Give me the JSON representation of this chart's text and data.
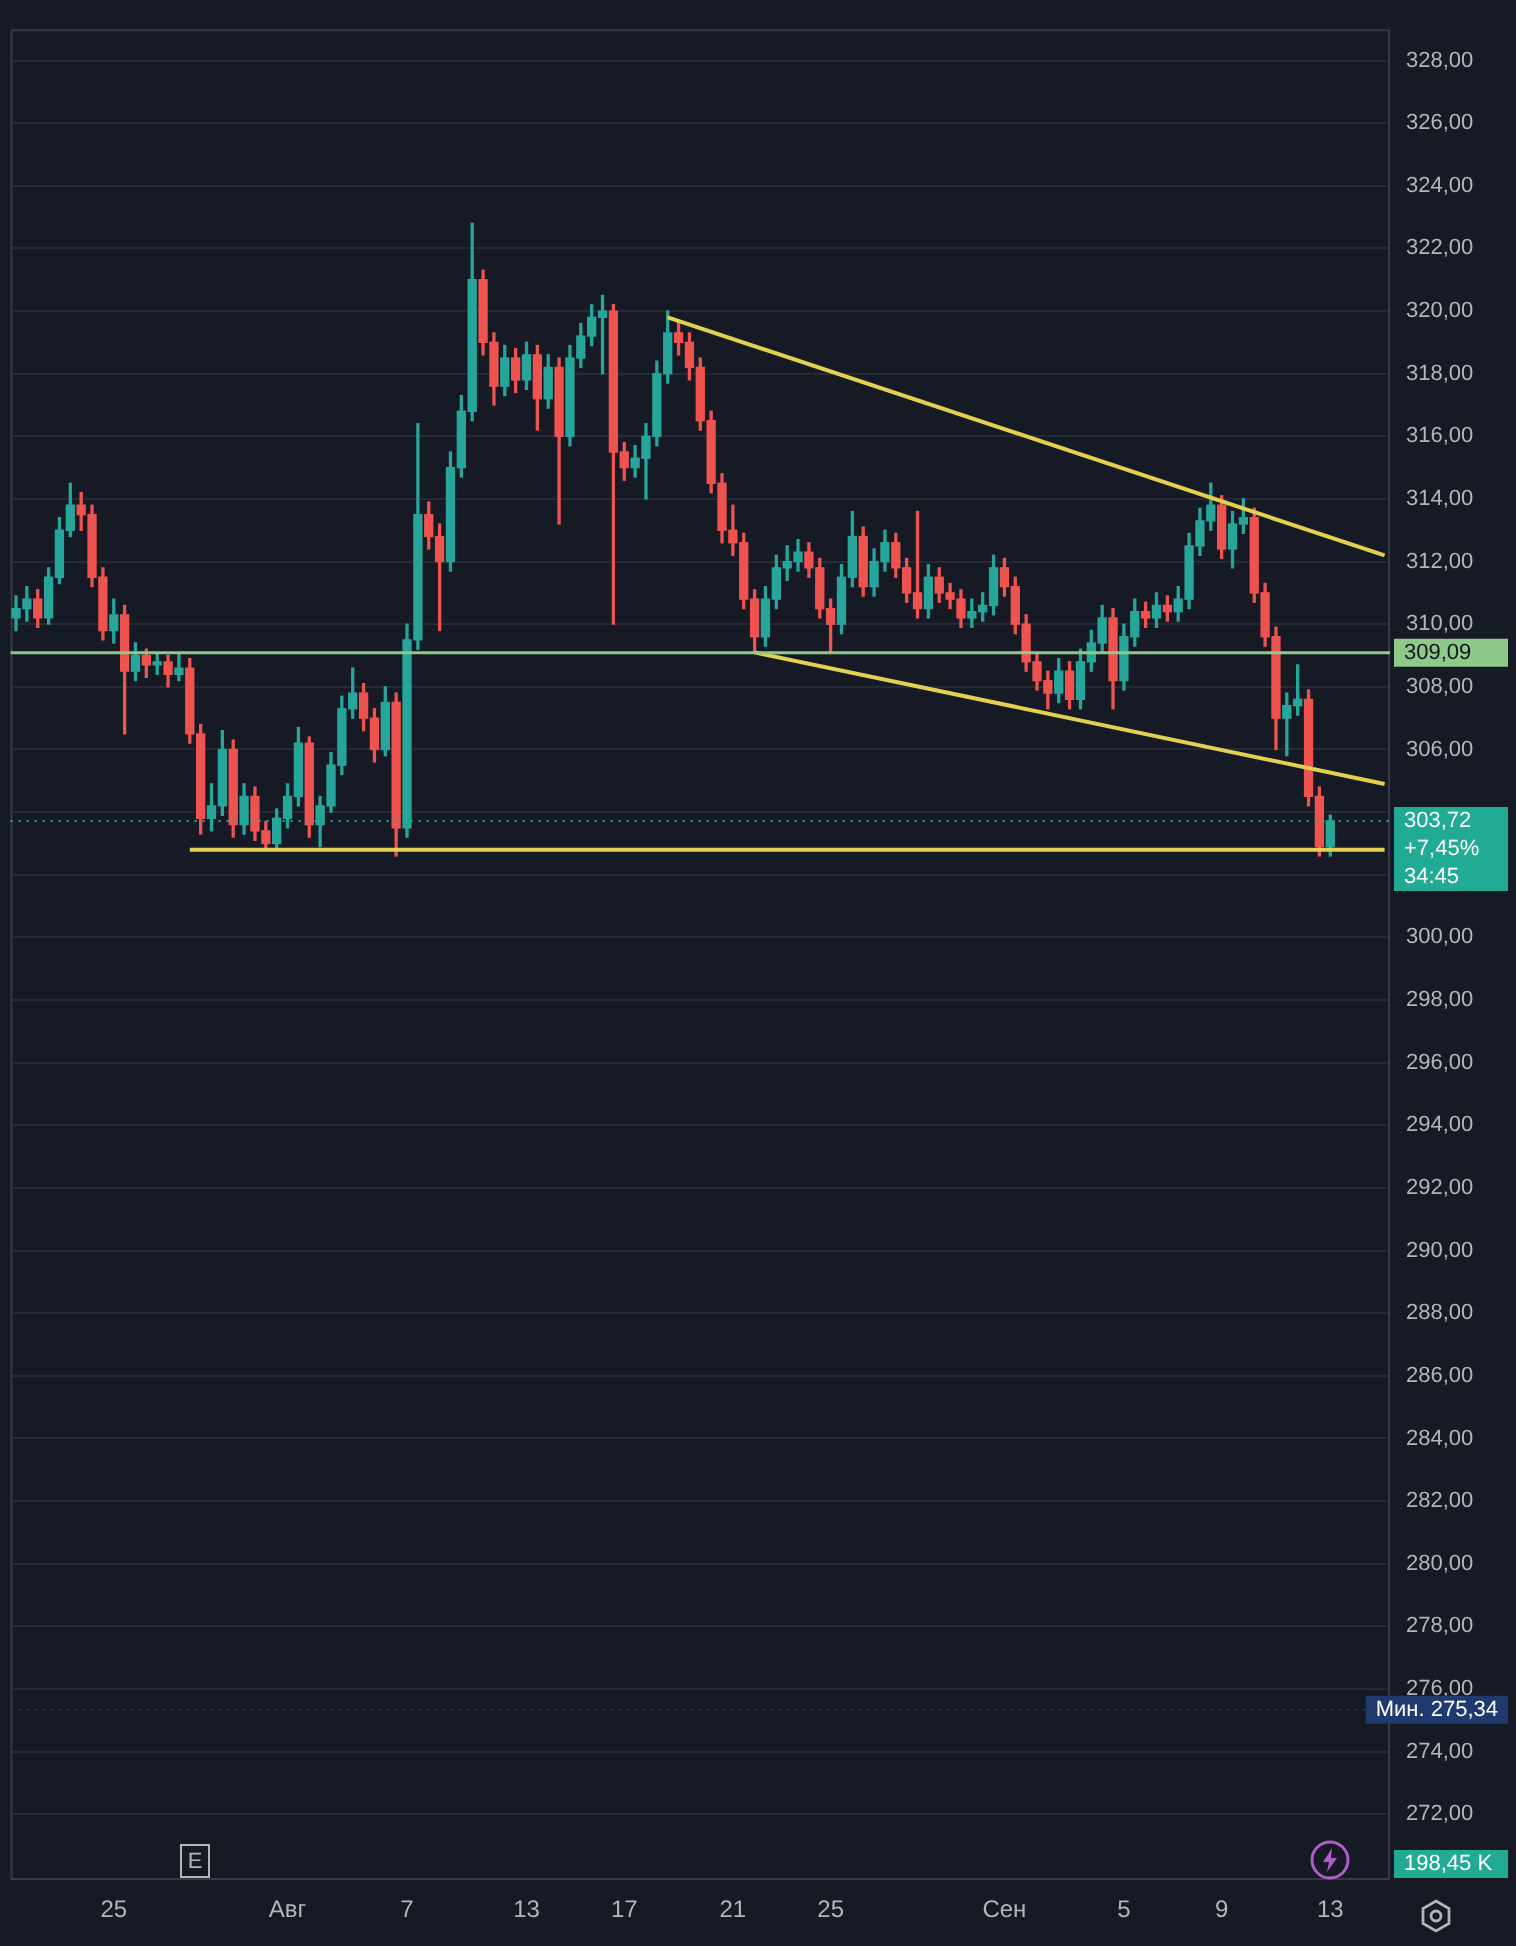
{
  "chart_data": {
    "type": "candlestick",
    "categories": [
      null,
      null,
      null,
      null,
      null,
      null,
      null,
      null,
      null,
      "25",
      null,
      null,
      null,
      null,
      null,
      null,
      null,
      null,
      null,
      null,
      null,
      null,
      null,
      null,
      null,
      "Авг",
      null,
      null,
      null,
      null,
      null,
      null,
      null,
      null,
      null,
      null,
      "7",
      null,
      null,
      null,
      null,
      null,
      null,
      null,
      null,
      null,
      null,
      "13",
      null,
      null,
      null,
      null,
      null,
      null,
      null,
      null,
      "17",
      null,
      null,
      null,
      null,
      null,
      null,
      null,
      null,
      null,
      "21",
      null,
      null,
      null,
      null,
      null,
      null,
      null,
      null,
      "25",
      null,
      null,
      null,
      null,
      null,
      null,
      null,
      null,
      null,
      null,
      null,
      null,
      null,
      null,
      null,
      "Сен",
      null,
      null,
      null,
      null,
      null,
      null,
      null,
      null,
      null,
      null,
      "5",
      null,
      null,
      null,
      null,
      null,
      null,
      null,
      null,
      "9",
      null,
      null,
      null,
      null,
      null,
      null,
      null,
      null,
      null,
      "13",
      null,
      null,
      null,
      null,
      null
    ],
    "ohlc": [
      [
        310.2,
        310.9,
        309.8,
        310.5
      ],
      [
        310.5,
        311.2,
        310.1,
        310.8
      ],
      [
        310.8,
        311.1,
        309.9,
        310.2
      ],
      [
        310.2,
        311.8,
        310.0,
        311.5
      ],
      [
        311.5,
        313.4,
        311.3,
        313.0
      ],
      [
        313.0,
        314.5,
        312.8,
        313.8
      ],
      [
        313.8,
        314.2,
        313.0,
        313.5
      ],
      [
        313.5,
        313.8,
        311.2,
        311.5
      ],
      [
        311.5,
        311.8,
        309.5,
        309.8
      ],
      [
        309.8,
        310.8,
        309.4,
        310.3
      ],
      [
        310.3,
        310.6,
        306.5,
        308.5
      ],
      [
        308.5,
        309.4,
        308.2,
        309.0
      ],
      [
        309.0,
        309.2,
        308.3,
        308.7
      ],
      [
        308.7,
        309.1,
        308.4,
        308.8
      ],
      [
        308.8,
        309.0,
        308.0,
        308.4
      ],
      [
        308.4,
        309.1,
        308.2,
        308.6
      ],
      [
        308.6,
        308.9,
        306.2,
        306.5
      ],
      [
        306.5,
        306.8,
        303.3,
        303.8
      ],
      [
        303.8,
        304.9,
        303.4,
        304.2
      ],
      [
        304.2,
        306.6,
        303.9,
        306.0
      ],
      [
        306.0,
        306.3,
        303.2,
        303.6
      ],
      [
        303.6,
        304.9,
        303.3,
        304.5
      ],
      [
        304.5,
        304.8,
        303.1,
        303.4
      ],
      [
        303.4,
        303.7,
        302.8,
        303.0
      ],
      [
        303.0,
        304.1,
        302.8,
        303.8
      ],
      [
        303.8,
        304.9,
        303.5,
        304.5
      ],
      [
        304.5,
        306.7,
        304.2,
        306.2
      ],
      [
        306.2,
        306.4,
        303.2,
        303.6
      ],
      [
        303.6,
        304.5,
        302.9,
        304.2
      ],
      [
        304.2,
        305.9,
        304.0,
        305.5
      ],
      [
        305.5,
        307.7,
        305.2,
        307.3
      ],
      [
        307.3,
        308.6,
        307.0,
        307.8
      ],
      [
        307.8,
        308.1,
        306.6,
        307.0
      ],
      [
        307.0,
        307.3,
        305.6,
        306.0
      ],
      [
        306.0,
        308.0,
        305.8,
        307.5
      ],
      [
        307.5,
        307.8,
        302.6,
        303.5
      ],
      [
        303.5,
        310.0,
        303.2,
        309.5
      ],
      [
        309.5,
        316.4,
        309.2,
        313.5
      ],
      [
        313.5,
        313.9,
        312.4,
        312.8
      ],
      [
        312.8,
        313.2,
        309.8,
        312.0
      ],
      [
        312.0,
        315.5,
        311.7,
        315.0
      ],
      [
        315.0,
        317.3,
        314.7,
        316.8
      ],
      [
        316.8,
        322.8,
        316.5,
        321.0
      ],
      [
        321.0,
        321.3,
        318.6,
        319.0
      ],
      [
        319.0,
        319.3,
        317.0,
        317.6
      ],
      [
        317.6,
        318.9,
        317.3,
        318.5
      ],
      [
        318.5,
        318.8,
        317.4,
        317.8
      ],
      [
        317.8,
        319.0,
        317.5,
        318.6
      ],
      [
        318.6,
        318.9,
        316.2,
        317.2
      ],
      [
        317.2,
        318.6,
        316.9,
        318.2
      ],
      [
        318.2,
        318.5,
        313.2,
        316.0
      ],
      [
        316.0,
        318.9,
        315.7,
        318.5
      ],
      [
        318.5,
        319.6,
        318.2,
        319.2
      ],
      [
        319.2,
        320.2,
        318.9,
        319.8
      ],
      [
        319.8,
        320.5,
        318.0,
        320.0
      ],
      [
        320.0,
        320.2,
        310.0,
        315.5
      ],
      [
        315.5,
        315.8,
        314.6,
        315.0
      ],
      [
        315.0,
        315.7,
        314.7,
        315.3
      ],
      [
        315.3,
        316.4,
        314.0,
        316.0
      ],
      [
        316.0,
        318.4,
        315.7,
        318.0
      ],
      [
        318.0,
        320.0,
        317.7,
        319.3
      ],
      [
        319.3,
        319.7,
        318.6,
        319.0
      ],
      [
        319.0,
        319.3,
        317.8,
        318.2
      ],
      [
        318.2,
        318.5,
        316.2,
        316.5
      ],
      [
        316.5,
        316.8,
        314.2,
        314.5
      ],
      [
        314.5,
        314.8,
        312.6,
        313.0
      ],
      [
        313.0,
        313.8,
        312.2,
        312.6
      ],
      [
        312.6,
        312.9,
        310.5,
        310.8
      ],
      [
        310.8,
        311.1,
        309.1,
        309.6
      ],
      [
        309.6,
        311.2,
        309.3,
        310.8
      ],
      [
        310.8,
        312.2,
        310.5,
        311.8
      ],
      [
        311.8,
        312.5,
        311.4,
        312.0
      ],
      [
        312.0,
        312.7,
        311.7,
        312.3
      ],
      [
        312.3,
        312.6,
        311.5,
        311.8
      ],
      [
        311.8,
        312.1,
        310.2,
        310.5
      ],
      [
        310.5,
        310.8,
        309.1,
        310.0
      ],
      [
        310.0,
        311.9,
        309.7,
        311.5
      ],
      [
        311.5,
        313.6,
        311.2,
        312.8
      ],
      [
        312.8,
        313.1,
        310.9,
        311.2
      ],
      [
        311.2,
        312.4,
        310.9,
        312.0
      ],
      [
        312.0,
        313.0,
        311.7,
        312.6
      ],
      [
        312.6,
        312.9,
        311.5,
        311.8
      ],
      [
        311.8,
        312.1,
        310.7,
        311.0
      ],
      [
        311.0,
        313.6,
        310.2,
        310.5
      ],
      [
        310.5,
        311.9,
        310.2,
        311.5
      ],
      [
        311.5,
        311.8,
        310.7,
        311.0
      ],
      [
        311.0,
        311.3,
        310.5,
        310.8
      ],
      [
        310.8,
        311.1,
        309.9,
        310.2
      ],
      [
        310.2,
        310.8,
        309.9,
        310.4
      ],
      [
        310.4,
        311.0,
        310.1,
        310.6
      ],
      [
        310.6,
        312.2,
        310.3,
        311.8
      ],
      [
        311.8,
        312.1,
        310.9,
        311.2
      ],
      [
        311.2,
        311.5,
        309.7,
        310.0
      ],
      [
        310.0,
        310.3,
        308.5,
        308.8
      ],
      [
        308.8,
        309.1,
        307.9,
        308.2
      ],
      [
        308.2,
        308.5,
        307.3,
        307.8
      ],
      [
        307.8,
        308.9,
        307.5,
        308.5
      ],
      [
        308.5,
        308.8,
        307.3,
        307.6
      ],
      [
        307.6,
        309.2,
        307.3,
        308.8
      ],
      [
        308.8,
        309.8,
        308.5,
        309.4
      ],
      [
        309.4,
        310.6,
        309.1,
        310.2
      ],
      [
        310.2,
        310.5,
        307.3,
        308.2
      ],
      [
        308.2,
        310.0,
        307.9,
        309.6
      ],
      [
        309.6,
        310.8,
        309.3,
        310.4
      ],
      [
        310.4,
        310.7,
        309.9,
        310.2
      ],
      [
        310.2,
        311.0,
        309.9,
        310.6
      ],
      [
        310.6,
        310.9,
        310.1,
        310.4
      ],
      [
        310.4,
        311.2,
        310.1,
        310.8
      ],
      [
        310.8,
        312.9,
        310.5,
        312.5
      ],
      [
        312.5,
        313.7,
        312.2,
        313.3
      ],
      [
        313.3,
        314.5,
        313.0,
        313.8
      ],
      [
        313.8,
        314.1,
        312.1,
        312.4
      ],
      [
        312.4,
        313.6,
        311.8,
        313.2
      ],
      [
        313.2,
        314.0,
        312.9,
        313.4
      ],
      [
        313.4,
        313.7,
        310.7,
        311.0
      ],
      [
        311.0,
        311.3,
        309.3,
        309.6
      ],
      [
        309.6,
        309.9,
        306.0,
        307.0
      ],
      [
        307.0,
        307.8,
        305.8,
        307.4
      ],
      [
        307.4,
        308.7,
        307.1,
        307.6
      ],
      [
        307.6,
        307.9,
        304.2,
        304.5
      ],
      [
        304.5,
        304.8,
        302.6,
        302.9
      ],
      [
        302.9,
        303.9,
        302.6,
        303.72
      ],
      null,
      null,
      null,
      null,
      null
    ],
    "colors": [
      "#26a69a",
      "#26a69a",
      "#ef5350",
      "#26a69a",
      "#26a69a",
      "#26a69a",
      "#ef5350",
      "#ef5350",
      "#ef5350",
      "#26a69a",
      "#ef5350",
      "#26a69a",
      "#ef5350",
      "#26a69a",
      "#ef5350",
      "#26a69a",
      "#ef5350",
      "#ef5350",
      "#26a69a",
      "#26a69a",
      "#ef5350",
      "#26a69a",
      "#ef5350",
      "#ef5350",
      "#26a69a",
      "#26a69a",
      "#26a69a",
      "#ef5350",
      "#26a69a",
      "#26a69a",
      "#26a69a",
      "#26a69a",
      "#ef5350",
      "#ef5350",
      "#26a69a",
      "#ef5350",
      "#26a69a",
      "#26a69a",
      "#ef5350",
      "#ef5350",
      "#26a69a",
      "#26a69a",
      "#26a69a",
      "#ef5350",
      "#ef5350",
      "#26a69a",
      "#ef5350",
      "#26a69a",
      "#ef5350",
      "#26a69a",
      "#ef5350",
      "#26a69a",
      "#26a69a",
      "#26a69a",
      "#26a69a",
      "#ef5350",
      "#ef5350",
      "#26a69a",
      "#26a69a",
      "#26a69a",
      "#26a69a",
      "#ef5350",
      "#ef5350",
      "#ef5350",
      "#ef5350",
      "#ef5350",
      "#ef5350",
      "#ef5350",
      "#ef5350",
      "#26a69a",
      "#26a69a",
      "#26a69a",
      "#26a69a",
      "#ef5350",
      "#ef5350",
      "#ef5350",
      "#26a69a",
      "#26a69a",
      "#ef5350",
      "#26a69a",
      "#26a69a",
      "#ef5350",
      "#ef5350",
      "#ef5350",
      "#26a69a",
      "#ef5350",
      "#ef5350",
      "#ef5350",
      "#26a69a",
      "#26a69a",
      "#26a69a",
      "#ef5350",
      "#ef5350",
      "#ef5350",
      "#ef5350",
      "#ef5350",
      "#26a69a",
      "#ef5350",
      "#26a69a",
      "#26a69a",
      "#26a69a",
      "#ef5350",
      "#26a69a",
      "#26a69a",
      "#ef5350",
      "#26a69a",
      "#ef5350",
      "#26a69a",
      "#26a69a",
      "#26a69a",
      "#26a69a",
      "#ef5350",
      "#26a69a",
      "#26a69a",
      "#ef5350",
      "#ef5350",
      "#ef5350",
      "#26a69a",
      "#26a69a",
      "#ef5350",
      "#ef5350",
      "#26a69a",
      null,
      null,
      null,
      null,
      null
    ],
    "series": [
      {
        "type": "line",
        "color": "#e3d04e",
        "values": [
          null,
          null,
          null,
          null,
          null,
          null,
          null,
          null,
          null,
          null,
          null,
          null,
          null,
          null,
          null,
          null,
          null,
          null,
          null,
          null,
          null,
          null,
          null,
          null,
          null,
          null,
          null,
          null,
          null,
          null,
          null,
          null,
          null,
          null,
          null,
          null,
          null,
          null,
          null,
          null,
          null,
          null,
          null,
          null,
          null,
          null,
          null,
          null,
          null,
          null,
          null,
          null,
          null,
          null,
          null,
          null,
          null,
          null,
          null,
          null,
          319.8,
          null,
          null,
          null,
          null,
          null,
          null,
          null,
          null,
          null,
          null,
          null,
          null,
          null,
          null,
          null,
          null,
          null,
          null,
          null,
          null,
          null,
          null,
          null,
          null,
          null,
          null,
          null,
          null,
          null,
          null,
          null,
          null,
          null,
          null,
          null,
          null,
          null,
          null,
          null,
          null,
          null,
          null,
          null,
          null,
          null,
          null,
          null,
          null,
          null,
          null,
          null,
          null,
          null,
          null,
          null,
          null,
          null,
          null,
          null,
          null,
          null,
          null,
          null,
          null,
          null,
          312.2
        ]
      },
      {
        "type": "line",
        "color": "#e3d04e",
        "values": [
          null,
          null,
          null,
          null,
          null,
          null,
          null,
          null,
          null,
          null,
          null,
          null,
          null,
          null,
          null,
          null,
          null,
          null,
          null,
          null,
          null,
          null,
          null,
          null,
          null,
          null,
          null,
          null,
          null,
          null,
          null,
          null,
          null,
          null,
          null,
          null,
          null,
          null,
          null,
          null,
          null,
          null,
          null,
          null,
          null,
          null,
          null,
          null,
          null,
          null,
          null,
          null,
          null,
          null,
          null,
          null,
          null,
          null,
          null,
          null,
          null,
          null,
          null,
          null,
          null,
          null,
          null,
          null,
          309.1,
          null,
          null,
          null,
          null,
          null,
          null,
          null,
          null,
          null,
          null,
          null,
          null,
          null,
          null,
          null,
          null,
          null,
          null,
          null,
          null,
          null,
          null,
          null,
          null,
          null,
          null,
          null,
          null,
          null,
          null,
          null,
          null,
          null,
          null,
          null,
          null,
          null,
          null,
          null,
          null,
          null,
          null,
          null,
          null,
          null,
          null,
          null,
          null,
          null,
          null,
          null,
          null,
          null,
          null,
          null,
          null,
          null,
          304.9
        ]
      },
      {
        "type": "line",
        "color": "#e3d04e",
        "values": [
          null,
          null,
          null,
          null,
          null,
          null,
          null,
          null,
          null,
          null,
          null,
          null,
          null,
          null,
          null,
          null,
          302.8,
          null,
          null,
          null,
          null,
          null,
          null,
          null,
          null,
          null,
          null,
          null,
          null,
          null,
          null,
          null,
          null,
          null,
          null,
          null,
          null,
          null,
          null,
          null,
          null,
          null,
          null,
          null,
          null,
          null,
          null,
          null,
          null,
          null,
          null,
          null,
          null,
          null,
          null,
          null,
          null,
          null,
          null,
          null,
          null,
          null,
          null,
          null,
          null,
          null,
          null,
          null,
          null,
          null,
          null,
          null,
          null,
          null,
          null,
          null,
          null,
          null,
          null,
          null,
          null,
          null,
          null,
          null,
          null,
          null,
          null,
          null,
          null,
          null,
          null,
          null,
          null,
          null,
          null,
          null,
          null,
          null,
          null,
          null,
          null,
          null,
          null,
          null,
          null,
          null,
          null,
          null,
          null,
          null,
          null,
          null,
          null,
          null,
          null,
          null,
          null,
          null,
          null,
          null,
          null,
          null,
          null,
          null,
          null,
          null,
          302.8
        ]
      }
    ],
    "ylim": [
      269.9,
      329
    ],
    "yticks": [
      {
        "value": 272,
        "label": "272,00"
      },
      {
        "value": 274,
        "label": "274,00"
      },
      {
        "value": 276,
        "label": "276,00"
      },
      {
        "value": 278,
        "label": "278,00"
      },
      {
        "value": 280,
        "label": "280,00"
      },
      {
        "value": 282,
        "label": "282,00"
      },
      {
        "value": 284,
        "label": "284,00"
      },
      {
        "value": 286,
        "label": "286,00"
      },
      {
        "value": 288,
        "label": "288,00"
      },
      {
        "value": 290,
        "label": "290,00"
      },
      {
        "value": 292,
        "label": "292,00"
      },
      {
        "value": 294,
        "label": "294,00"
      },
      {
        "value": 296,
        "label": "296,00"
      },
      {
        "value": 298,
        "label": "298,00"
      },
      {
        "value": 300,
        "label": "300,00"
      },
      {
        "value": 302,
        "label": null
      },
      {
        "value": 304,
        "label": null
      },
      {
        "value": 306,
        "label": "306,00"
      },
      {
        "value": 308,
        "label": "308,00"
      },
      {
        "value": 310,
        "label": "310,00"
      },
      {
        "value": 312,
        "label": "312,00"
      },
      {
        "value": 314,
        "label": "314,00"
      },
      {
        "value": 316,
        "label": "316,00"
      },
      {
        "value": 318,
        "label": "318,00"
      },
      {
        "value": 320,
        "label": "320,00"
      },
      {
        "value": 322,
        "label": "322,00"
      },
      {
        "value": 324,
        "label": "324,00"
      },
      {
        "value": 326,
        "label": "326,00"
      },
      {
        "value": 328,
        "label": "328,00"
      }
    ],
    "ref_lines": [
      {
        "axis": "y",
        "value": 309.09,
        "label": "309,09",
        "color": "#8fc98a",
        "line_style": "solid"
      },
      {
        "axis": "y",
        "value": 303.72,
        "label": "303,72",
        "color": "#22ab94",
        "line_style": "dotted"
      },
      {
        "axis": "y",
        "value": 275.34,
        "label": "Мин. 275,34",
        "color": "#1e3a6e",
        "line_style": "dotted"
      }
    ],
    "annotations": [
      "+7,45%",
      "34:45",
      "E",
      "198,45 K"
    ],
    "grid": "y",
    "legend": false,
    "marker": "none"
  }
}
